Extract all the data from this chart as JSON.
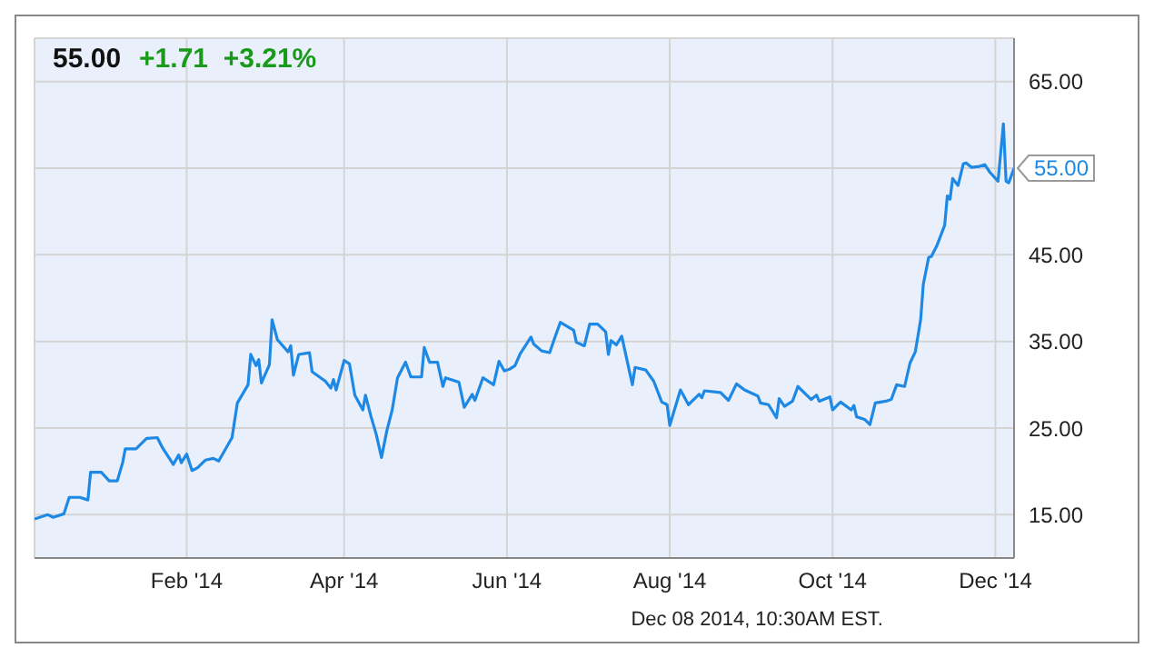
{
  "chart_data": {
    "type": "line",
    "title": "55.00",
    "subtitle": "+1.71  +3.21%",
    "x": [
      "2013-12-06",
      "2013-12-11",
      "2013-12-13",
      "2013-12-17",
      "2013-12-19",
      "2013-12-23",
      "2013-12-26",
      "2013-12-27",
      "2013-12-31",
      "2014-01-03",
      "2014-01-06",
      "2014-01-08",
      "2014-01-09",
      "2014-01-13",
      "2014-01-17",
      "2014-01-21",
      "2014-01-23",
      "2014-01-27",
      "2014-01-29",
      "2014-01-30",
      "2014-02-01",
      "2014-02-03",
      "2014-02-05",
      "2014-02-08",
      "2014-02-11",
      "2014-02-13",
      "2014-02-18",
      "2014-02-20",
      "2014-02-24",
      "2014-02-25",
      "2014-02-27",
      "2014-02-28",
      "2014-03-01",
      "2014-03-04",
      "2014-03-05",
      "2014-03-07",
      "2014-03-11",
      "2014-03-12",
      "2014-03-13",
      "2014-03-15",
      "2014-03-19",
      "2014-03-20",
      "2014-03-25",
      "2014-03-27",
      "2014-03-28",
      "2014-03-29",
      "2014-04-01",
      "2014-04-03",
      "2014-04-05",
      "2014-04-08",
      "2014-04-09",
      "2014-04-11",
      "2014-04-13",
      "2014-04-15",
      "2014-04-17",
      "2014-04-19",
      "2014-04-21",
      "2014-04-24",
      "2014-04-26",
      "2014-04-30",
      "2014-05-01",
      "2014-05-03",
      "2014-05-06",
      "2014-05-08",
      "2014-05-09",
      "2014-05-14",
      "2014-05-16",
      "2014-05-19",
      "2014-05-20",
      "2014-05-23",
      "2014-05-27",
      "2014-05-29",
      "2014-05-31",
      "2014-06-02",
      "2014-06-04",
      "2014-06-06",
      "2014-06-10",
      "2014-06-11",
      "2014-06-14",
      "2014-06-17",
      "2014-06-19",
      "2014-06-21",
      "2014-06-26",
      "2014-06-27",
      "2014-06-30",
      "2014-07-02",
      "2014-07-05",
      "2014-07-08",
      "2014-07-09",
      "2014-07-10",
      "2014-07-12",
      "2014-07-14",
      "2014-07-18",
      "2014-07-19",
      "2014-07-23",
      "2014-07-26",
      "2014-07-29",
      "2014-07-31",
      "2014-08-01",
      "2014-08-05",
      "2014-08-08",
      "2014-08-12",
      "2014-08-13",
      "2014-08-14",
      "2014-08-20",
      "2014-08-23",
      "2014-08-26",
      "2014-08-29",
      "2014-09-03",
      "2014-09-04",
      "2014-09-07",
      "2014-09-10",
      "2014-09-11",
      "2014-09-13",
      "2014-09-16",
      "2014-09-18",
      "2014-09-23",
      "2014-09-25",
      "2014-09-26",
      "2014-09-30",
      "2014-10-01",
      "2014-10-04",
      "2014-10-08",
      "2014-10-09",
      "2014-10-10",
      "2014-10-13",
      "2014-10-15",
      "2014-10-17",
      "2014-10-21",
      "2014-10-23",
      "2014-10-25",
      "2014-10-28",
      "2014-10-30",
      "2014-11-01",
      "2014-11-03",
      "2014-11-04",
      "2014-11-06",
      "2014-11-07",
      "2014-11-09",
      "2014-11-12",
      "2014-11-13",
      "2014-11-14",
      "2014-11-15",
      "2014-11-17",
      "2014-11-19",
      "2014-11-20",
      "2014-11-22",
      "2014-11-25",
      "2014-11-27",
      "2014-11-29",
      "2014-12-02",
      "2014-12-04",
      "2014-12-05",
      "2014-12-06",
      "2014-12-08"
    ],
    "series": [
      {
        "color": "#1e88e5",
        "values": [
          14.5,
          15.0,
          14.7,
          15.1,
          17.0,
          17.0,
          16.7,
          19.9,
          19.9,
          18.9,
          18.9,
          21.0,
          22.6,
          22.6,
          23.8,
          23.9,
          22.7,
          20.8,
          21.9,
          21.0,
          22.0,
          20.1,
          20.4,
          21.3,
          21.5,
          21.2,
          23.9,
          27.9,
          30.0,
          33.5,
          32.2,
          32.9,
          30.2,
          32.3,
          37.5,
          35.2,
          33.8,
          34.5,
          31.1,
          33.5,
          33.7,
          31.5,
          30.4,
          29.6,
          30.6,
          29.4,
          32.8,
          32.4,
          28.8,
          27.1,
          28.8,
          26.4,
          24.3,
          21.6,
          24.7,
          27.1,
          30.8,
          32.6,
          30.9,
          30.9,
          34.3,
          32.6,
          32.6,
          29.8,
          30.8,
          30.3,
          27.4,
          28.9,
          28.2,
          30.8,
          30.0,
          32.7,
          31.6,
          31.8,
          32.2,
          33.6,
          35.5,
          34.7,
          33.9,
          33.7,
          35.5,
          37.2,
          36.3,
          34.9,
          34.5,
          37.0,
          37.0,
          36.1,
          33.5,
          35.1,
          34.6,
          35.6,
          30.0,
          32.0,
          31.7,
          30.4,
          28.0,
          27.7,
          25.3,
          29.4,
          27.7,
          28.9,
          28.5,
          29.3,
          29.1,
          28.2,
          30.1,
          29.4,
          28.7,
          27.9,
          27.7,
          26.2,
          28.4,
          27.5,
          28.1,
          29.8,
          28.3,
          28.8,
          28.1,
          28.6,
          27.1,
          28.0,
          27.1,
          27.6,
          26.3,
          26.0,
          25.4,
          27.9,
          28.1,
          28.3,
          30.0,
          29.8,
          32.5,
          33.8,
          37.5,
          41.6,
          44.7,
          44.8,
          46.0,
          48.4,
          51.8,
          51.4,
          53.8,
          53.0,
          55.5,
          55.6,
          55.1,
          55.2,
          55.4,
          54.5,
          53.5,
          60.1,
          53.5,
          53.3,
          55.0
        ]
      }
    ],
    "xlim": [
      "2013-12-06",
      "2014-12-08"
    ],
    "xticks": [
      {
        "value": "2014-02-01",
        "label": "Feb '14"
      },
      {
        "value": "2014-04-01",
        "label": "Apr '14"
      },
      {
        "value": "2014-06-01",
        "label": "Jun '14"
      },
      {
        "value": "2014-08-01",
        "label": "Aug '14"
      },
      {
        "value": "2014-10-01",
        "label": "Oct '14"
      },
      {
        "value": "2014-12-01",
        "label": "Dec '14"
      }
    ],
    "ylim": [
      10,
      70
    ],
    "yticks": [
      {
        "value": 15,
        "label": "15.00"
      },
      {
        "value": 25,
        "label": "25.00"
      },
      {
        "value": 35,
        "label": "35.00"
      },
      {
        "value": 45,
        "label": "45.00"
      },
      {
        "value": 55,
        "label": null
      },
      {
        "value": 65,
        "label": "65.00"
      }
    ],
    "grid": true,
    "marker": "none",
    "line_style": "solid",
    "legend": false,
    "annotations": [
      {
        "text": "55.00",
        "x": "2014-12-08",
        "y": 55
      },
      "Dec 08 2014, 10:30AM EST."
    ]
  }
}
